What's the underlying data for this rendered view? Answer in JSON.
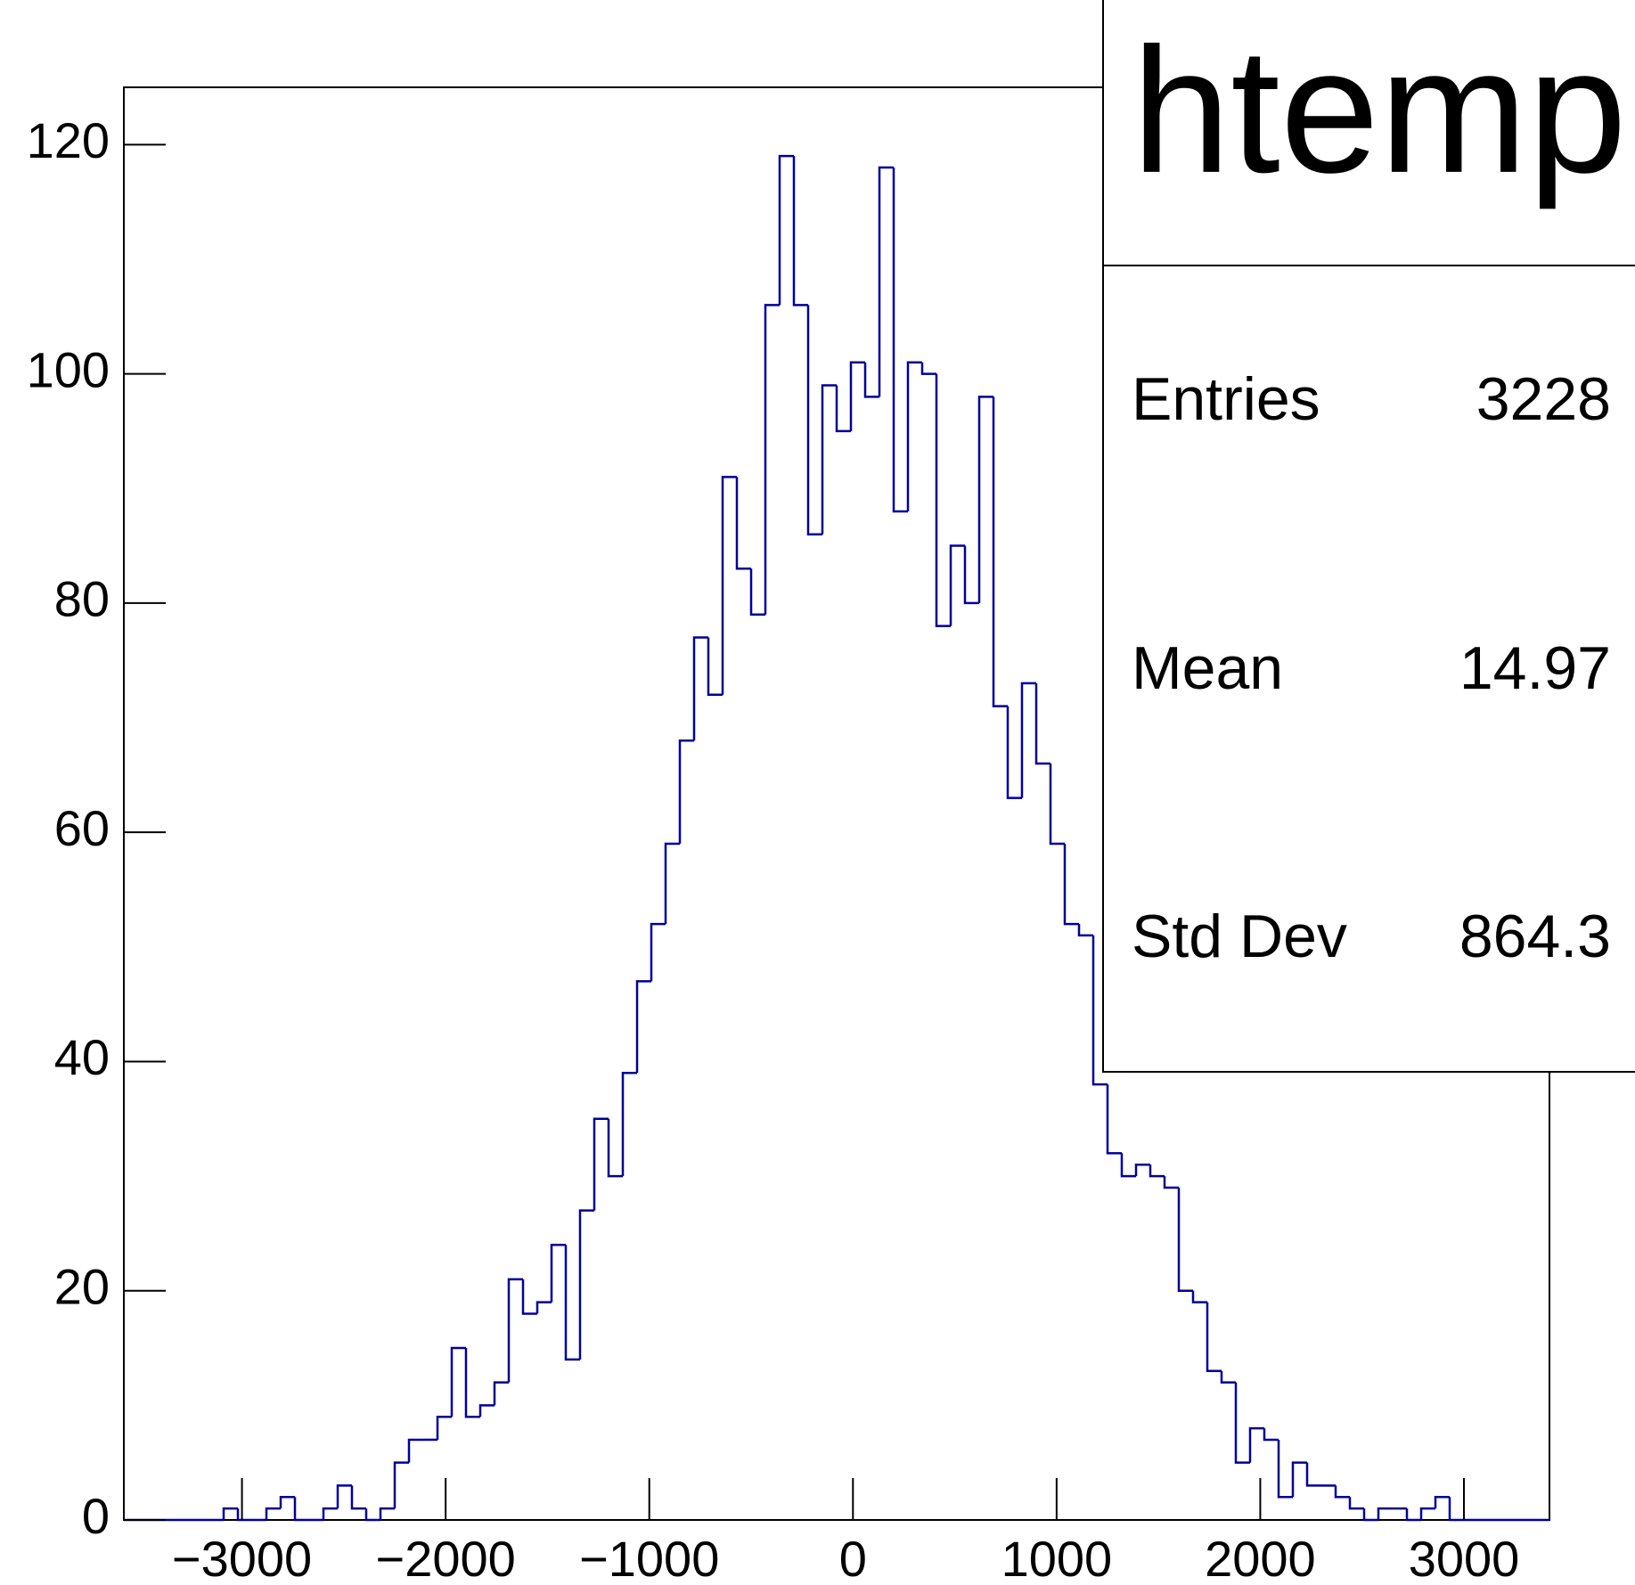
{
  "chart_data": {
    "type": "histogram",
    "title": "htemp",
    "bins": [
      -3580,
      -3510,
      -3440,
      -3370,
      -3300,
      -3230,
      -3160,
      -3090,
      -3020,
      -2950,
      -2880,
      -2810,
      -2740,
      -2670,
      -2600,
      -2530,
      -2460,
      -2390,
      -2320,
      -2250,
      -2180,
      -2110,
      -2040,
      -1970,
      -1900,
      -1830,
      -1760,
      -1690,
      -1620,
      -1550,
      -1480,
      -1410,
      -1340,
      -1270,
      -1200,
      -1130,
      -1060,
      -990,
      -920,
      -850,
      -780,
      -710,
      -640,
      -570,
      -500,
      -430,
      -360,
      -290,
      -220,
      -150,
      -80,
      -10,
      60,
      130,
      200,
      270,
      340,
      410,
      480,
      550,
      620,
      690,
      760,
      830,
      900,
      970,
      1040,
      1110,
      1180,
      1250,
      1320,
      1390,
      1460,
      1530,
      1600,
      1670,
      1740,
      1810,
      1880,
      1950,
      2020,
      2090,
      2160,
      2230,
      2300,
      2370,
      2440,
      2510,
      2580,
      2650,
      2720,
      2790,
      2860,
      2930,
      3000,
      3070,
      3140,
      3210,
      3280,
      3350,
      3420
    ],
    "values": [
      0,
      0,
      0,
      0,
      0,
      0,
      0,
      1,
      0,
      0,
      1,
      2,
      0,
      0,
      1,
      3,
      1,
      0,
      1,
      5,
      7,
      7,
      9,
      15,
      9,
      10,
      12,
      21,
      18,
      19,
      24,
      14,
      27,
      35,
      30,
      39,
      47,
      52,
      59,
      68,
      77,
      72,
      91,
      83,
      79,
      106,
      119,
      106,
      86,
      99,
      95,
      101,
      98,
      118,
      88,
      101,
      100,
      78,
      85,
      80,
      98,
      71,
      63,
      73,
      66,
      59,
      52,
      51,
      38,
      32,
      30,
      31,
      30,
      29,
      20,
      19,
      13,
      12,
      5,
      8,
      7,
      2,
      5,
      3,
      3,
      2,
      1,
      0,
      1,
      1,
      0,
      1,
      2,
      0,
      0,
      0,
      0,
      0,
      0,
      0
    ],
    "color": "#000099",
    "xlim": [
      -3580,
      3420
    ],
    "ylim": [
      0,
      125
    ],
    "xticks": [
      -3000,
      -2000,
      -1000,
      0,
      1000,
      2000,
      3000
    ],
    "yticks": [
      0,
      20,
      40,
      60,
      80,
      100,
      120
    ],
    "stats": [
      {
        "label": "Entries",
        "value": 3228
      },
      {
        "label": "Mean",
        "value": 14.97
      },
      {
        "label": "Std Dev",
        "value": 864.3
      }
    ]
  }
}
